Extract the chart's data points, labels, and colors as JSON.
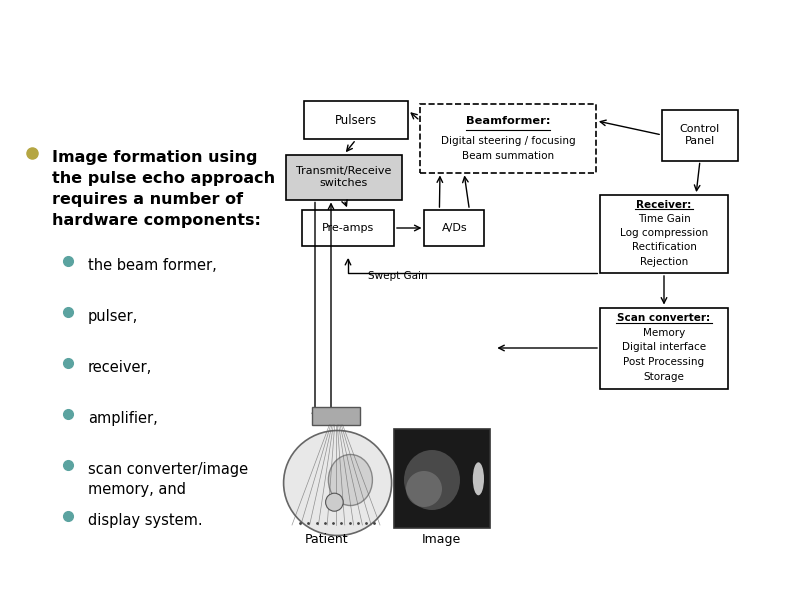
{
  "background_color": "#ffffff",
  "main_bullet_color": "#b5a642",
  "sub_bullet_color": "#5ba3a0",
  "text_color": "#000000",
  "main_bullet_text": "Image formation using\nthe pulse echo approach\nrequires a number of\nhardware components:",
  "sub_bullets": [
    "the beam former,",
    "pulser,",
    "receiver,",
    "amplifier,",
    "scan converter/image\nmemory, and",
    "display system."
  ],
  "patient_label": "Patient",
  "image_label": "Image"
}
